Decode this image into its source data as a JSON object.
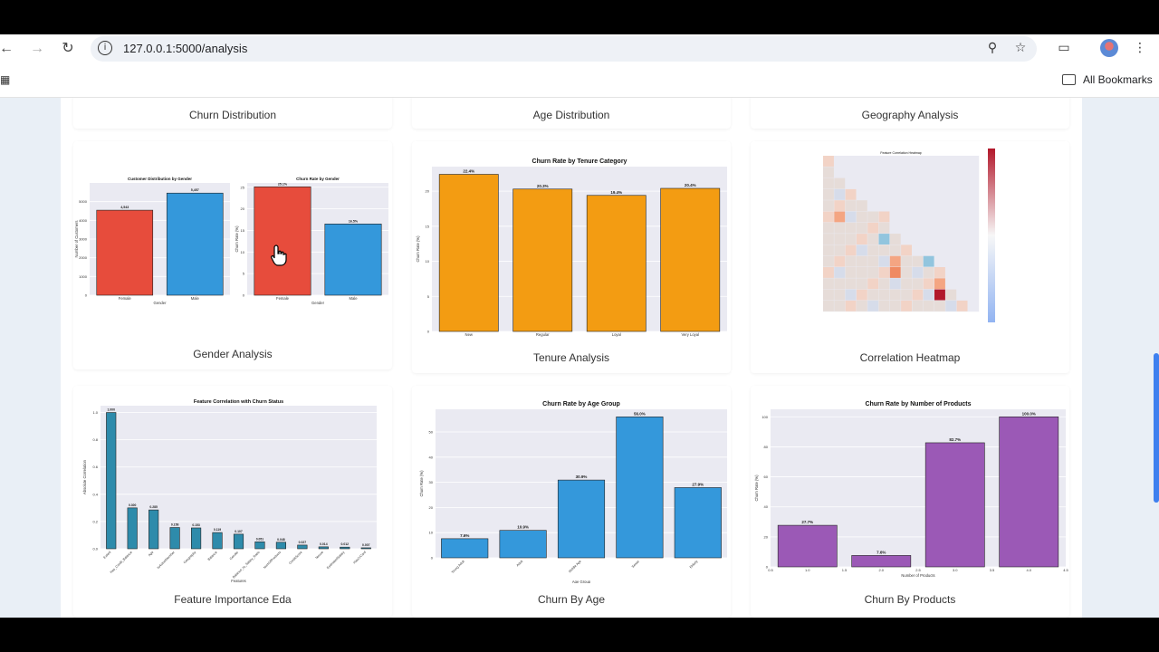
{
  "browser": {
    "url": "127.0.0.1:5000/analysis",
    "bookmarks_label": "All Bookmarks"
  },
  "cards": {
    "top": [
      "Churn Distribution",
      "Age Distribution",
      "Geography Analysis"
    ],
    "gender": "Gender Analysis",
    "tenure": "Tenure Analysis",
    "corr": "Correlation Heatmap",
    "feature": "Feature Importance Eda",
    "age": "Churn By Age",
    "products": "Churn By Products"
  },
  "colors": {
    "red": "#e74c3c",
    "blue": "#3498db",
    "orange": "#f39c12",
    "teal": "#2e8bab",
    "purple": "#9b59b6"
  },
  "chart_data": [
    {
      "type": "bar",
      "id": "gender-distribution",
      "title": "Customer Distribution by Gender",
      "xlabel": "Gender",
      "ylabel": "Number of Customers",
      "categories": [
        "Female",
        "Male"
      ],
      "values": [
        4543,
        5457
      ],
      "data_labels": [
        "4,543",
        "5,457"
      ],
      "ylim": [
        0,
        6000
      ],
      "yticks": [
        "0",
        "1000",
        "2000",
        "3000",
        "4000",
        "5000"
      ]
    },
    {
      "type": "bar",
      "id": "gender-churn",
      "title": "Churn Rate by Gender",
      "xlabel": "Gender",
      "ylabel": "Churn Rate (%)",
      "categories": [
        "Female",
        "Male"
      ],
      "values": [
        25.1,
        16.5
      ],
      "data_labels": [
        "25.1%",
        "16.5%"
      ],
      "ylim": [
        0,
        26
      ],
      "yticks": [
        "0",
        "5",
        "10",
        "15",
        "20",
        "25"
      ]
    },
    {
      "type": "bar",
      "id": "tenure",
      "title": "Churn Rate by Tenure Category",
      "xlabel": "Tenure Category",
      "ylabel": "Churn Rate (%)",
      "categories": [
        "New",
        "Regular",
        "Loyal",
        "Very Loyal"
      ],
      "values": [
        22.4,
        20.3,
        19.4,
        20.4
      ],
      "data_labels": [
        "22.4%",
        "20.3%",
        "19.4%",
        "20.4%"
      ],
      "ylim": [
        0,
        23.5
      ],
      "yticks": [
        "0",
        "5",
        "10",
        "15",
        "20"
      ]
    },
    {
      "type": "heatmap",
      "id": "correlation",
      "title": "Feature Correlation Heatmap"
    },
    {
      "type": "bar",
      "id": "feature",
      "title": "Feature Correlation with Churn Status",
      "xlabel": "Features",
      "ylabel": "Absolute Correlation",
      "categories": [
        "Exited",
        "Has_Credit_Balance",
        "Age",
        "IsActiveMember",
        "Geography",
        "Balance",
        "Gender",
        "Balance_to_Salary_Ratio",
        "NumOfProducts",
        "CreditScore",
        "Tenure",
        "EstimatedSalary",
        "HasCrCard"
      ],
      "values": [
        1.0,
        0.3,
        0.285,
        0.156,
        0.153,
        0.119,
        0.107,
        0.051,
        0.048,
        0.027,
        0.014,
        0.012,
        0.007
      ],
      "data_labels": [
        "1.000",
        "0.300",
        "0.285",
        "0.156",
        "0.153",
        "0.119",
        "0.107",
        "0.051",
        "0.048",
        "0.027",
        "0.014",
        "0.012",
        "0.007"
      ],
      "ylim": [
        0,
        1.05
      ],
      "yticks": [
        "0.0",
        "0.2",
        "0.4",
        "0.6",
        "0.8",
        "1.0"
      ]
    },
    {
      "type": "bar",
      "id": "age",
      "title": "Churn Rate by Age Group",
      "xlabel": "Age Group",
      "ylabel": "Churn Rate (%)",
      "categories": [
        "Young Adult",
        "Adult",
        "Middle Age",
        "Senior",
        "Elderly"
      ],
      "values": [
        7.6,
        10.9,
        30.9,
        56.0,
        27.9
      ],
      "data_labels": [
        "7.6%",
        "10.9%",
        "30.9%",
        "56.0%",
        "27.9%"
      ],
      "ylim": [
        0,
        59
      ],
      "yticks": [
        "0",
        "10",
        "20",
        "30",
        "40",
        "50"
      ]
    },
    {
      "type": "bar",
      "id": "products",
      "title": "Churn Rate by Number of Products",
      "xlabel": "Number of Products",
      "ylabel": "Churn Rate (%)",
      "x": [
        1.0,
        2.0,
        3.0,
        4.0
      ],
      "values": [
        27.7,
        7.6,
        82.7,
        100.0
      ],
      "data_labels": [
        "27.7%",
        "7.6%",
        "82.7%",
        "100.0%"
      ],
      "ylim": [
        0,
        105
      ],
      "yticks": [
        "0",
        "20",
        "40",
        "60",
        "80",
        "100"
      ],
      "xticks": [
        "0.5",
        "1.0",
        "1.5",
        "2.0",
        "2.5",
        "3.0",
        "3.5",
        "4.0",
        "4.5"
      ]
    }
  ]
}
